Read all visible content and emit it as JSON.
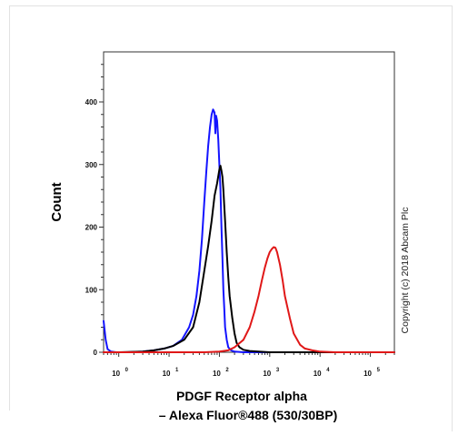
{
  "chart_data": {
    "type": "line",
    "title": "",
    "ylabel": "Count",
    "xlabel_lines": [
      "PDGF Receptor alpha",
      "– Alexa Fluor®488 (530/30BP)"
    ],
    "x_scale": "log",
    "xlim": [
      0.5,
      300000
    ],
    "ylim": [
      0,
      480
    ],
    "x_ticks": [
      {
        "value": 1,
        "base": "10",
        "exp": "0"
      },
      {
        "value": 10,
        "base": "10",
        "exp": "1"
      },
      {
        "value": 100,
        "base": "10",
        "exp": "2"
      },
      {
        "value": 1000,
        "base": "10",
        "exp": "3"
      },
      {
        "value": 10000,
        "base": "10",
        "exp": "4"
      },
      {
        "value": 100000,
        "base": "10",
        "exp": "5"
      }
    ],
    "y_ticks": [
      0,
      100,
      200,
      300,
      400
    ],
    "grid": false,
    "copyright": "Copyright (c) 2018 Abcam Plc",
    "series": [
      {
        "color": "#1414ff",
        "x": [
          0.5,
          0.55,
          0.6,
          0.7,
          0.9,
          1.5,
          3,
          5,
          8,
          12,
          18,
          25,
          30,
          35,
          40,
          45,
          50,
          55,
          60,
          65,
          70,
          75,
          80,
          83,
          86,
          90,
          95,
          100,
          105,
          110,
          115,
          120,
          125,
          130,
          140,
          150,
          170,
          200,
          300,
          600,
          1500,
          5000,
          50000,
          300000
        ],
        "y": [
          50,
          20,
          5,
          1,
          0,
          0,
          1,
          3,
          6,
          10,
          20,
          40,
          60,
          90,
          130,
          180,
          240,
          290,
          330,
          360,
          380,
          388,
          383,
          350,
          378,
          370,
          340,
          300,
          260,
          200,
          150,
          100,
          70,
          40,
          20,
          8,
          3,
          1,
          0,
          0,
          0,
          0,
          0,
          0
        ]
      },
      {
        "color": "#000000",
        "x": [
          0.5,
          1,
          3,
          5,
          8,
          12,
          20,
          30,
          40,
          50,
          60,
          70,
          80,
          90,
          100,
          105,
          110,
          115,
          120,
          130,
          140,
          150,
          160,
          180,
          200,
          220,
          250,
          300,
          400,
          600,
          1000,
          3000,
          50000,
          300000
        ],
        "y": [
          0,
          0,
          1,
          3,
          6,
          10,
          20,
          40,
          80,
          130,
          170,
          210,
          250,
          270,
          292,
          298,
          290,
          280,
          260,
          210,
          160,
          120,
          90,
          55,
          30,
          15,
          8,
          4,
          2,
          1,
          0,
          0,
          0,
          0
        ]
      },
      {
        "color": "#e01818",
        "x": [
          0.5,
          10,
          50,
          100,
          150,
          200,
          300,
          400,
          500,
          600,
          700,
          800,
          900,
          1000,
          1100,
          1200,
          1300,
          1400,
          1600,
          1800,
          2000,
          2500,
          3000,
          4000,
          5000,
          7000,
          10000,
          20000,
          100000,
          300000
        ],
        "y": [
          0,
          0,
          0,
          1,
          3,
          8,
          20,
          40,
          65,
          90,
          115,
          135,
          150,
          160,
          165,
          168,
          167,
          160,
          140,
          115,
          90,
          55,
          30,
          12,
          6,
          3,
          1,
          0,
          0,
          0
        ]
      }
    ]
  }
}
